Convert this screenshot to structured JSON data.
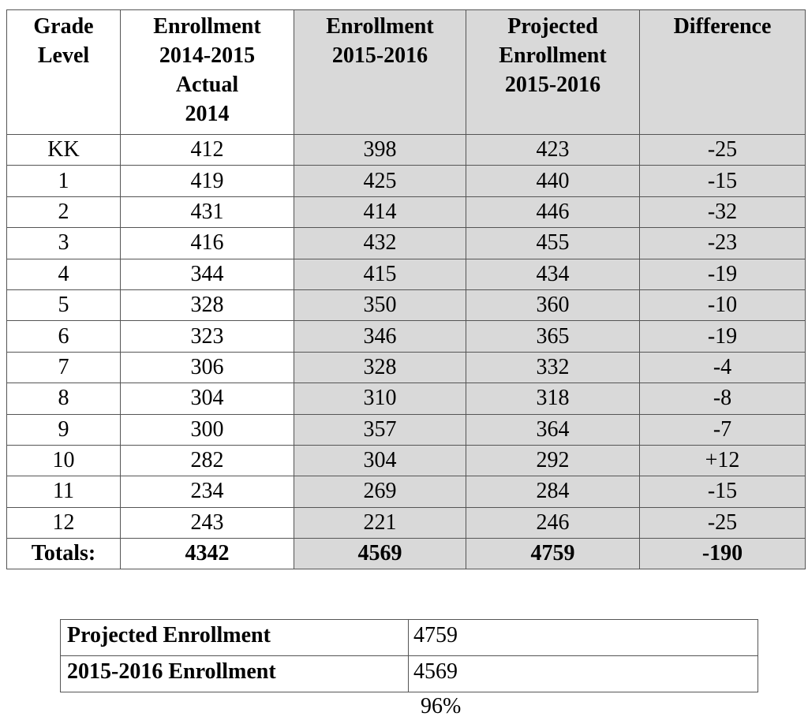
{
  "table": {
    "header": [
      [
        "Grade",
        "Level"
      ],
      [
        "Enrollment",
        "2014-2015",
        "Actual",
        "2014"
      ],
      [
        "Enrollment",
        "2015-2016"
      ],
      [
        "Projected",
        "Enrollment",
        "2015-2016"
      ],
      [
        "Difference"
      ]
    ],
    "rows": [
      [
        "KK",
        "412",
        "398",
        "423",
        "-25"
      ],
      [
        "1",
        "419",
        "425",
        "440",
        "-15"
      ],
      [
        "2",
        "431",
        "414",
        "446",
        "-32"
      ],
      [
        "3",
        "416",
        "432",
        "455",
        "-23"
      ],
      [
        "4",
        "344",
        "415",
        "434",
        "-19"
      ],
      [
        "5",
        "328",
        "350",
        "360",
        "-10"
      ],
      [
        "6",
        "323",
        "346",
        "365",
        "-19"
      ],
      [
        "7",
        "306",
        "328",
        "332",
        "-4"
      ],
      [
        "8",
        "304",
        "310",
        "318",
        "-8"
      ],
      [
        "9",
        "300",
        "357",
        "364",
        "-7"
      ],
      [
        "10",
        "282",
        "304",
        "292",
        "+12"
      ],
      [
        "11",
        "234",
        "269",
        "284",
        "-15"
      ],
      [
        "12",
        "243",
        "221",
        "246",
        "-25"
      ]
    ],
    "totals": [
      "Totals:",
      "4342",
      "4569",
      "4759",
      "-190"
    ]
  },
  "summary": {
    "rows": [
      [
        "Projected Enrollment",
        "4759"
      ],
      [
        "2015-2016 Enrollment",
        "4569"
      ]
    ],
    "note": "96%"
  }
}
